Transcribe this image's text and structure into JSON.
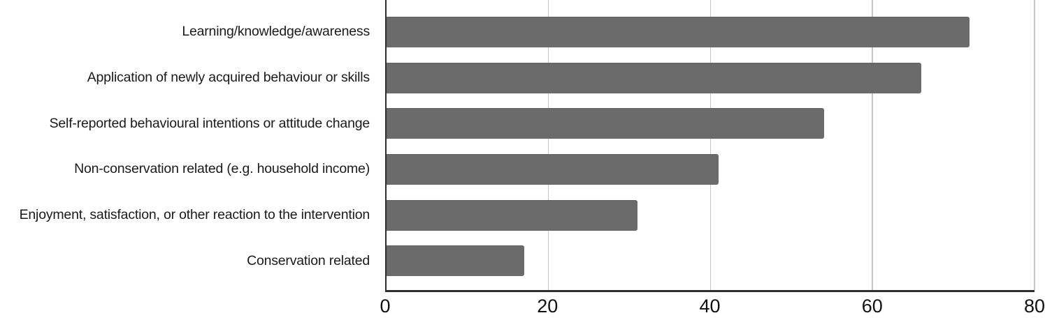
{
  "chart_data": {
    "type": "bar",
    "orientation": "horizontal",
    "title": "",
    "xlabel": "",
    "ylabel": "",
    "categories": [
      "Learning/knowledge/awareness",
      "Application of newly acquired behaviour or skills",
      "Self-reported behavioural intentions or attitude change",
      "Non-conservation related (e.g. household income)",
      "Enjoyment, satisfaction, or other reaction to the intervention",
      "Conservation related"
    ],
    "values": [
      72,
      66,
      54,
      41,
      31,
      17
    ],
    "xlim": [
      0,
      80
    ],
    "xticks": [
      0,
      20,
      40,
      60,
      80
    ],
    "grid": "vertical gridlines at x ticks, behind bars",
    "legend": "none",
    "colors": {
      "bar": "#6b6b6b",
      "gridline": "#c6c6c6",
      "axis": "#2f2f2f",
      "text": "#1a1a1a",
      "background": "#ffffff"
    }
  }
}
